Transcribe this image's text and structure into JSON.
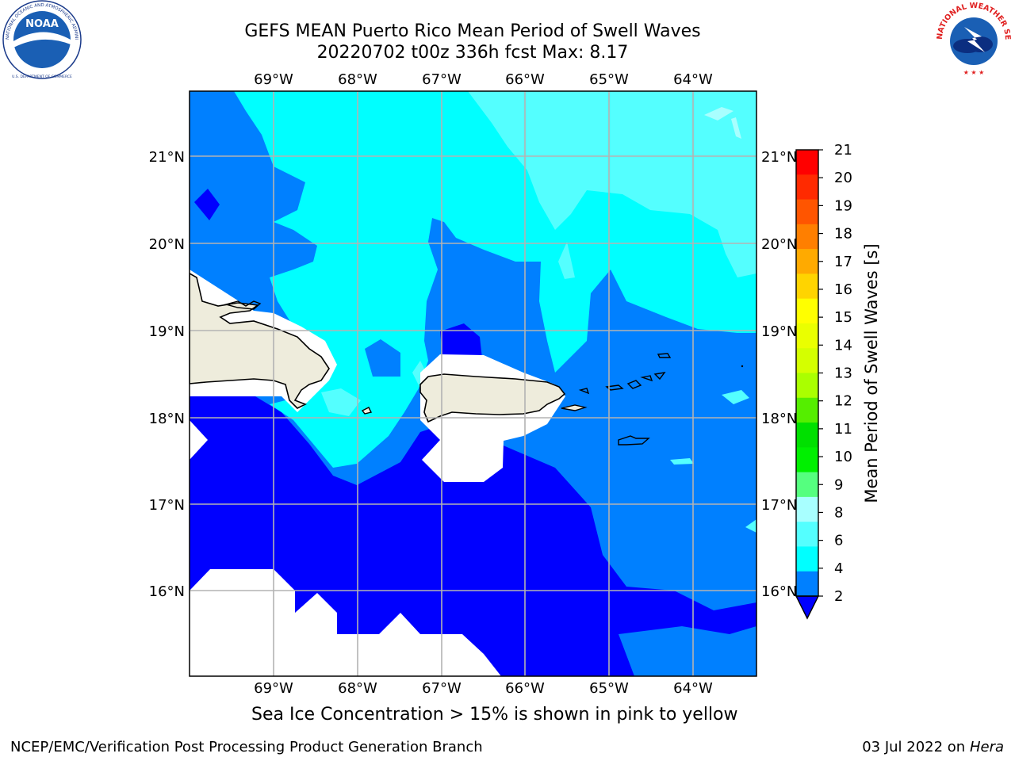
{
  "header": {
    "title_line1": "GEFS MEAN Puerto Rico Mean Period of Swell Waves",
    "title_line2": "20220702 t00z 336h fcst   Max: 8.17"
  },
  "map": {
    "lon_labels": [
      "69°W",
      "68°W",
      "67°W",
      "66°W",
      "65°W",
      "64°W"
    ],
    "lat_labels": [
      "21°N",
      "20°N",
      "19°N",
      "18°N",
      "17°N",
      "16°N"
    ],
    "colors": {
      "land": "#eeecdc",
      "ocean_2_4": "#0080ff",
      "ocean_below_2": "#0000ff",
      "ocean_4_6": "#00ffff",
      "ocean_6_8": "#54ffff",
      "ocean_8_9": "#a8ffff",
      "grid": "#b3b3b3"
    }
  },
  "colorbar": {
    "label": "Mean Period of Swell Waves [s]",
    "ticks": [
      "21",
      "20",
      "19",
      "18",
      "17",
      "16",
      "15",
      "14",
      "13",
      "12",
      "11",
      "10",
      "9",
      "8",
      "6",
      "4",
      "2"
    ],
    "colors": [
      "#ff0000",
      "#ff2a00",
      "#ff5500",
      "#ff7f00",
      "#ffaa00",
      "#ffd400",
      "#ffff00",
      "#eaff00",
      "#d4ff00",
      "#aaff00",
      "#55ee00",
      "#00e000",
      "#00f000",
      "#55ff7f",
      "#a8ffff",
      "#54ffff",
      "#00ffff",
      "#0080ff"
    ],
    "extend_color": "#0000ff"
  },
  "notes": {
    "sea_ice": "Sea Ice Concentration > 15% is shown in pink to yellow"
  },
  "footer": {
    "left": "NCEP/EMC/Verification Post Processing Product Generation Branch",
    "date": "03 Jul 2022 on ",
    "host": "Hera"
  },
  "logos": {
    "noaa_text": "NOAA",
    "noaa_ring": "NATIONAL OCEANIC AND ATMOSPHERIC ADMINISTRATION",
    "noaa_ring_bottom": "U.S. DEPARTMENT OF COMMERCE",
    "nws_ring": "NATIONAL WEATHER SERVICE"
  }
}
